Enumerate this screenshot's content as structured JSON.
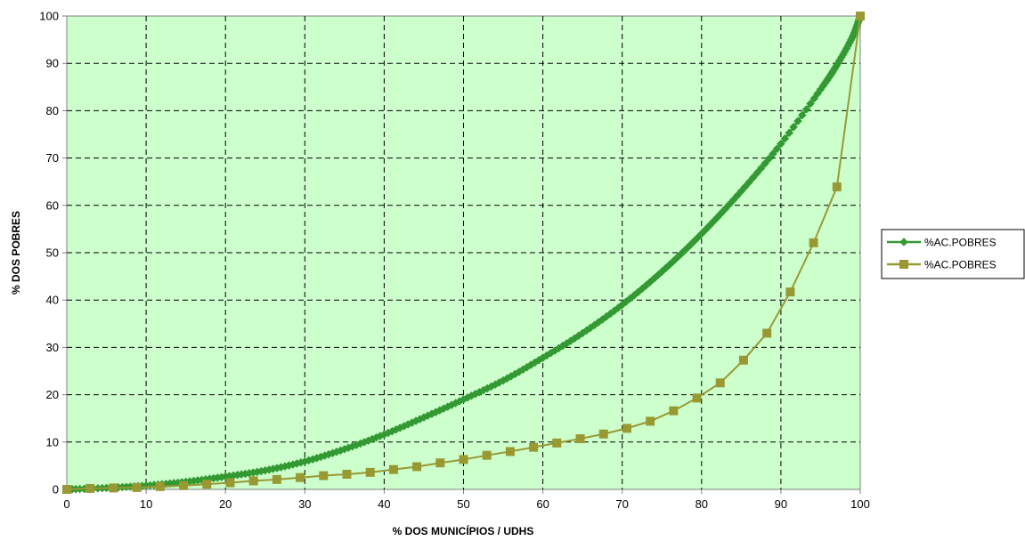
{
  "chart_data": {
    "type": "line",
    "xlabel": "% DOS MUNICÍPIOS / UDHS",
    "ylabel": "% DOS POBRES",
    "xlim": [
      0,
      100
    ],
    "ylim": [
      0,
      100
    ],
    "x_ticks": [
      "0",
      "10",
      "20",
      "30",
      "40",
      "50",
      "60",
      "70",
      "80",
      "90",
      "100"
    ],
    "y_ticks": [
      "0",
      "10",
      "20",
      "30",
      "40",
      "50",
      "60",
      "70",
      "80",
      "90",
      "100"
    ],
    "grid": true,
    "legend_position": "right",
    "plot_background": "#ccffcc",
    "series": [
      {
        "name": "%AC.POBRES",
        "color": "#339933",
        "marker": "diamond",
        "points": [
          [
            0,
            0
          ],
          [
            5,
            0.3
          ],
          [
            10,
            0.8
          ],
          [
            15,
            1.6
          ],
          [
            20,
            2.7
          ],
          [
            25,
            4.0
          ],
          [
            30,
            5.9
          ],
          [
            35,
            8.5
          ],
          [
            40,
            11.6
          ],
          [
            45,
            15.2
          ],
          [
            50,
            19.0
          ],
          [
            55,
            23.0
          ],
          [
            60,
            27.8
          ],
          [
            65,
            33.0
          ],
          [
            70,
            39.0
          ],
          [
            75,
            46.0
          ],
          [
            80,
            54.0
          ],
          [
            85,
            63.0
          ],
          [
            90,
            73.0
          ],
          [
            95,
            84.5
          ],
          [
            97,
            89.5
          ],
          [
            99,
            95.5
          ],
          [
            100,
            100
          ]
        ]
      },
      {
        "name": "%AC.POBRES",
        "color": "#999933",
        "marker": "square",
        "points": [
          [
            0,
            0
          ],
          [
            2.94,
            0.2
          ],
          [
            5.88,
            0.3
          ],
          [
            8.82,
            0.4
          ],
          [
            11.76,
            0.6
          ],
          [
            14.71,
            0.8
          ],
          [
            17.65,
            1.1
          ],
          [
            20.59,
            1.4
          ],
          [
            23.53,
            1.8
          ],
          [
            26.47,
            2.1
          ],
          [
            29.41,
            2.5
          ],
          [
            32.35,
            2.9
          ],
          [
            35.29,
            3.2
          ],
          [
            38.24,
            3.6
          ],
          [
            41.18,
            4.2
          ],
          [
            44.12,
            4.8
          ],
          [
            47.06,
            5.6
          ],
          [
            50,
            6.3
          ],
          [
            52.94,
            7.2
          ],
          [
            55.88,
            8.0
          ],
          [
            58.82,
            8.9
          ],
          [
            61.76,
            9.8
          ],
          [
            64.71,
            10.7
          ],
          [
            67.65,
            11.7
          ],
          [
            70.59,
            12.9
          ],
          [
            73.53,
            14.4
          ],
          [
            76.47,
            16.6
          ],
          [
            79.41,
            19.3
          ],
          [
            82.35,
            22.5
          ],
          [
            85.29,
            27.3
          ],
          [
            88.24,
            33.0
          ],
          [
            91.18,
            41.7
          ],
          [
            94.12,
            52.1
          ],
          [
            97.06,
            63.9
          ],
          [
            100,
            100
          ]
        ]
      }
    ]
  }
}
